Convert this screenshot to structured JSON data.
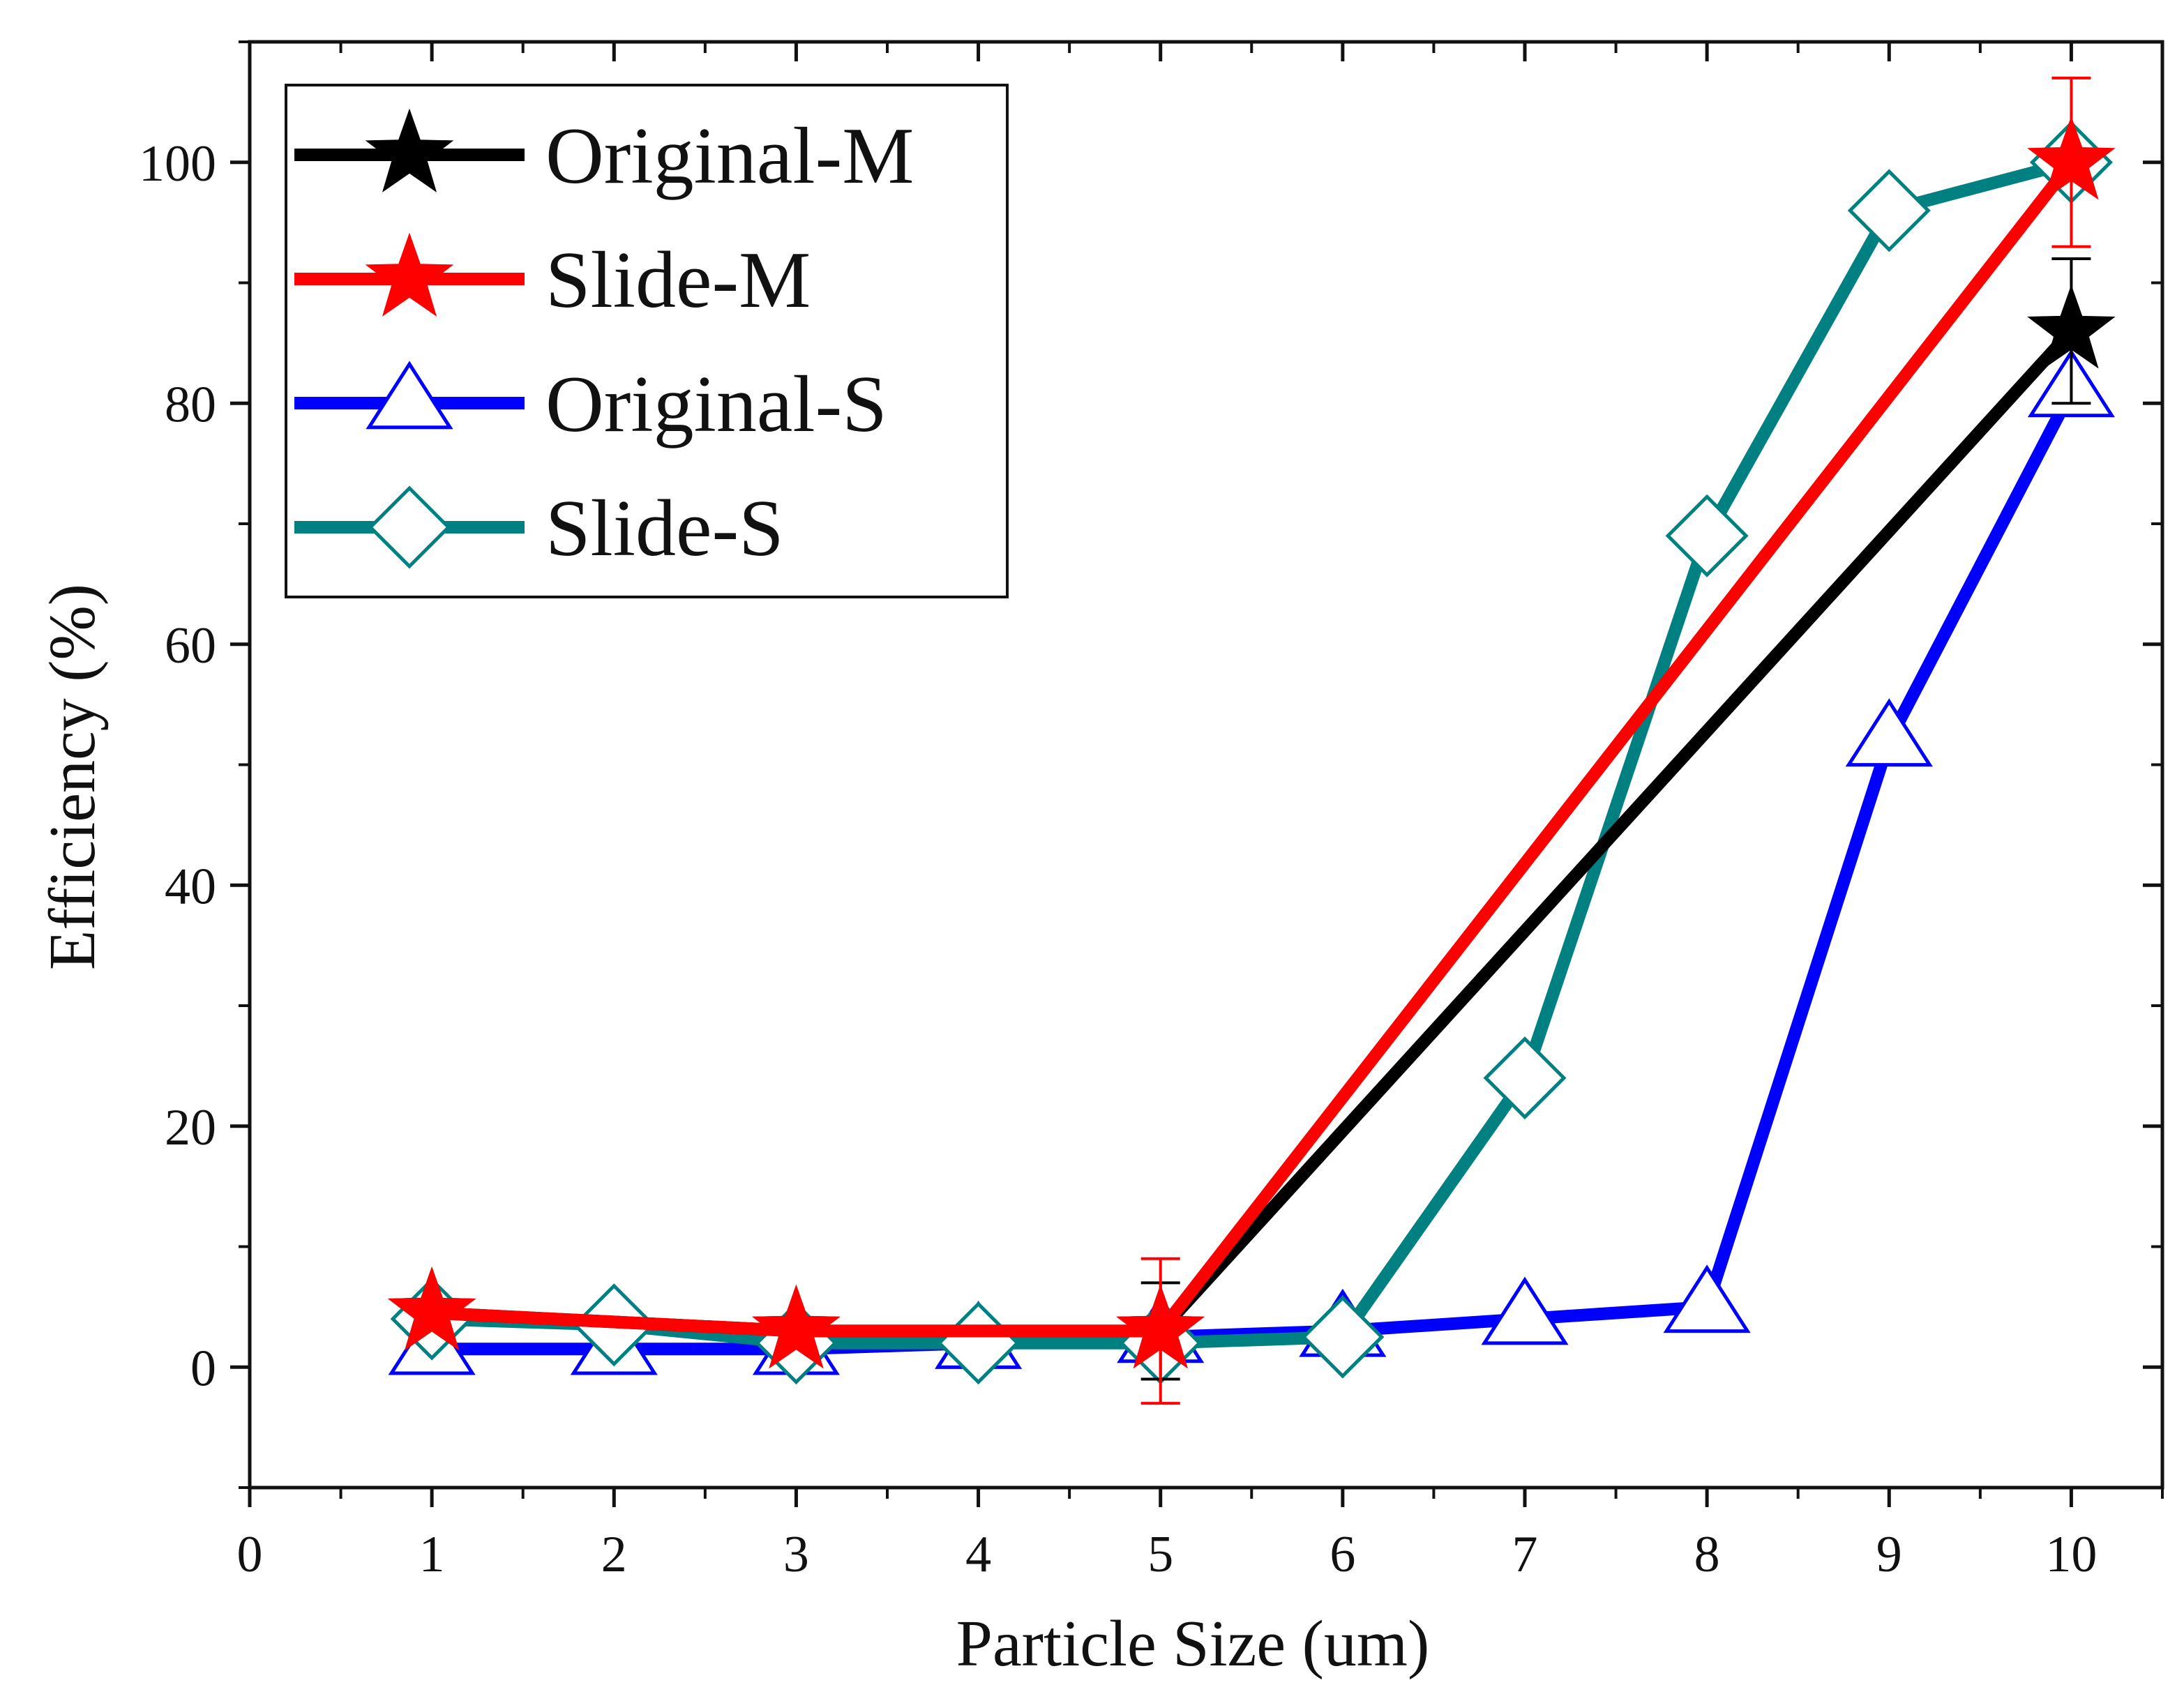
{
  "chart_data": {
    "type": "line",
    "title": "",
    "xlabel": "Particle Size (um)",
    "ylabel": "Efficiency (%)",
    "xlim": [
      0,
      10.5
    ],
    "ylim": [
      -10,
      110
    ],
    "xticks": [
      0,
      1,
      2,
      3,
      4,
      5,
      6,
      7,
      8,
      9,
      10
    ],
    "xtick_labels": [
      "0",
      "1",
      "2",
      "3",
      "4",
      "5",
      "6",
      "7",
      "8",
      "9",
      "10"
    ],
    "yticks": [
      0,
      20,
      40,
      60,
      80,
      100
    ],
    "ytick_labels": [
      "0",
      "20",
      "40",
      "60",
      "80",
      "100"
    ],
    "grid": false,
    "legend_position": "top-left",
    "series": [
      {
        "id": "original-m",
        "name": "Original-M",
        "color": "#000000",
        "marker": "star",
        "x": [
          1,
          3,
          5,
          10
        ],
        "y": [
          4.5,
          3,
          3,
          86
        ],
        "error": [
          null,
          null,
          4,
          6
        ]
      },
      {
        "id": "slide-m",
        "name": "Slide-M",
        "color": "#ff0000",
        "marker": "star",
        "x": [
          1,
          3,
          5,
          10
        ],
        "y": [
          4.5,
          3,
          3,
          100
        ],
        "error": [
          null,
          null,
          6,
          7
        ]
      },
      {
        "id": "original-s",
        "name": "Original-S",
        "color": "#0000ff",
        "marker": "triangle",
        "x": [
          1,
          2,
          3,
          4,
          5,
          6,
          7,
          8,
          9,
          10
        ],
        "y": [
          1.5,
          1.5,
          1.5,
          2,
          2.5,
          3,
          4,
          5,
          52,
          81
        ],
        "error": [
          null,
          null,
          null,
          null,
          null,
          null,
          null,
          null,
          null,
          null
        ]
      },
      {
        "id": "slide-s",
        "name": "Slide-S",
        "color": "#008080",
        "marker": "diamond",
        "x": [
          1,
          2,
          3,
          4,
          5,
          6,
          7,
          8,
          9,
          10
        ],
        "y": [
          4,
          3.5,
          2,
          2,
          2,
          2.5,
          24,
          69,
          96,
          100
        ],
        "error": [
          null,
          null,
          null,
          null,
          null,
          null,
          null,
          null,
          null,
          null
        ]
      }
    ],
    "draw_order": [
      "original-s",
      "slide-s",
      "original-m",
      "slide-m"
    ]
  }
}
